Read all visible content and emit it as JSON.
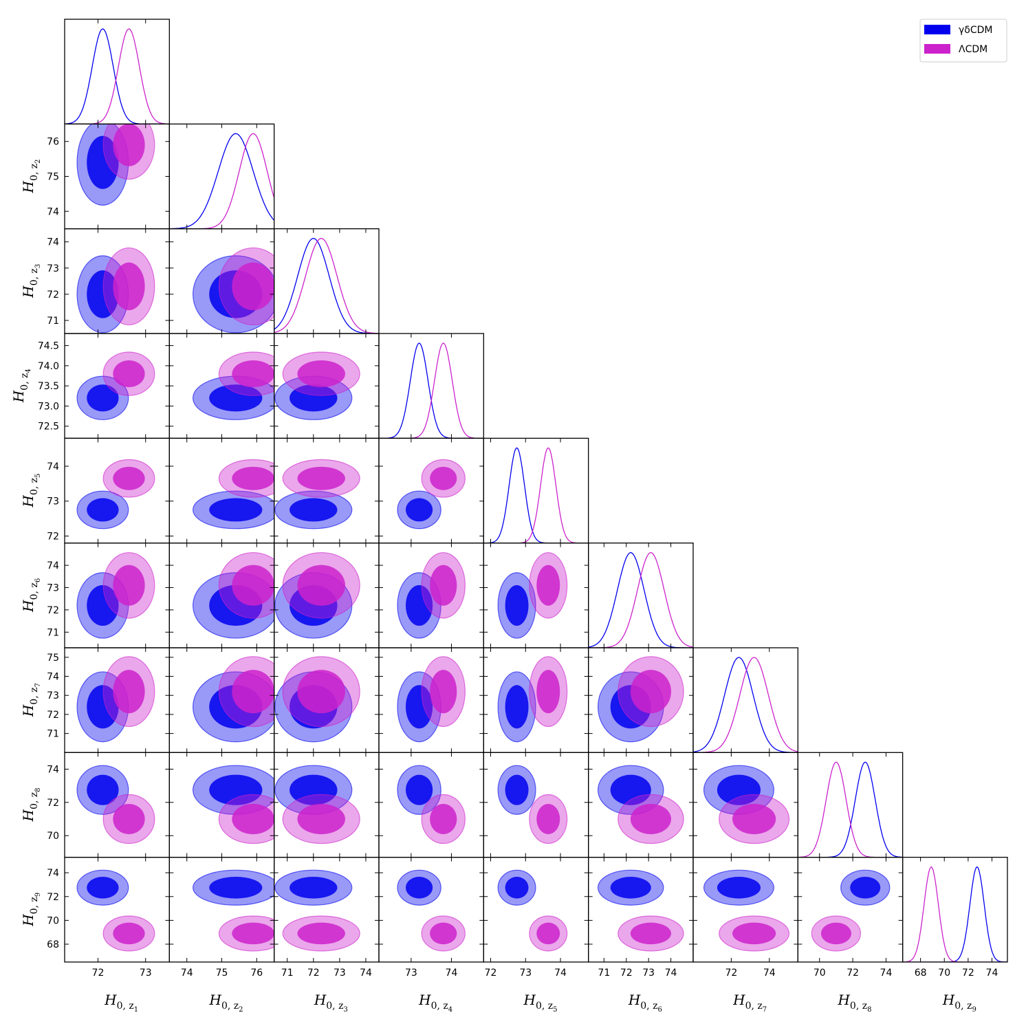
{
  "chart_data": {
    "type": "corner",
    "title": "",
    "parameters": [
      {
        "id": "z1",
        "label": "H",
        "sub": "0, z",
        "subsub": "1",
        "range": [
          71.3,
          73.5
        ],
        "ticks": [
          72,
          73
        ]
      },
      {
        "id": "z2",
        "label": "H",
        "sub": "0, z",
        "subsub": "2",
        "range": [
          73.5,
          76.5
        ],
        "ticks": [
          74,
          75,
          76
        ]
      },
      {
        "id": "z3",
        "label": "H",
        "sub": "0, z",
        "subsub": "3",
        "range": [
          70.5,
          74.5
        ],
        "ticks": [
          71,
          72,
          73,
          74
        ]
      },
      {
        "id": "z4",
        "label": "H",
        "sub": "0, z",
        "subsub": "4",
        "range": [
          72.2,
          74.8
        ],
        "ticks": [
          73,
          74
        ]
      },
      {
        "id": "z5",
        "label": "H",
        "sub": "0, z",
        "subsub": "5",
        "range": [
          71.8,
          74.8
        ],
        "ticks": [
          72,
          73,
          74
        ]
      },
      {
        "id": "z6",
        "label": "H",
        "sub": "0, z",
        "subsub": "6",
        "range": [
          70.3,
          75.0
        ],
        "ticks": [
          71,
          72,
          73,
          74
        ]
      },
      {
        "id": "z7",
        "label": "H",
        "sub": "0, z",
        "subsub": "7",
        "range": [
          70.0,
          75.5
        ],
        "ticks": [
          72,
          74
        ]
      },
      {
        "id": "z8",
        "label": "H",
        "sub": "0, z",
        "subsub": "8",
        "range": [
          68.7,
          75.0
        ],
        "ticks": [
          70,
          72,
          74
        ]
      },
      {
        "id": "z9",
        "label": "H",
        "sub": "0, z",
        "subsub": "9",
        "range": [
          66.5,
          75.3
        ],
        "ticks": [
          68,
          70,
          72,
          74
        ]
      }
    ],
    "row_ticks": {
      "z2": [
        "74",
        "75",
        "76"
      ],
      "z3": [
        "71",
        "72",
        "73",
        "74"
      ],
      "z4": [
        "72.5",
        "73.0",
        "73.5",
        "74.0",
        "74.5"
      ],
      "z5": [
        "72",
        "73",
        "74"
      ],
      "z6": [
        "71",
        "72",
        "73",
        "74"
      ],
      "z7": [
        "71",
        "72",
        "73",
        "74",
        "75"
      ],
      "z8": [
        "70",
        "72",
        "74"
      ],
      "z9": [
        "68",
        "70",
        "72",
        "74"
      ]
    },
    "series": [
      {
        "name": "γδCDM",
        "color": "#0000ee",
        "mean": [
          72.1,
          75.4,
          72.0,
          73.2,
          72.75,
          72.2,
          72.4,
          72.75,
          72.75
        ],
        "sigma": [
          0.22,
          0.5,
          0.6,
          0.22,
          0.22,
          0.6,
          0.75,
          0.6,
          0.6
        ]
      },
      {
        "name": "ΛCDM",
        "color": "#cc22cc",
        "mean": [
          72.65,
          75.9,
          72.3,
          73.8,
          73.65,
          73.1,
          73.2,
          71.0,
          68.9
        ],
        "sigma": [
          0.22,
          0.4,
          0.6,
          0.22,
          0.22,
          0.6,
          0.75,
          0.6,
          0.6
        ]
      }
    ],
    "legend": {
      "position": "top-right",
      "entries": [
        "γδCDM",
        "ΛCDM"
      ]
    }
  }
}
